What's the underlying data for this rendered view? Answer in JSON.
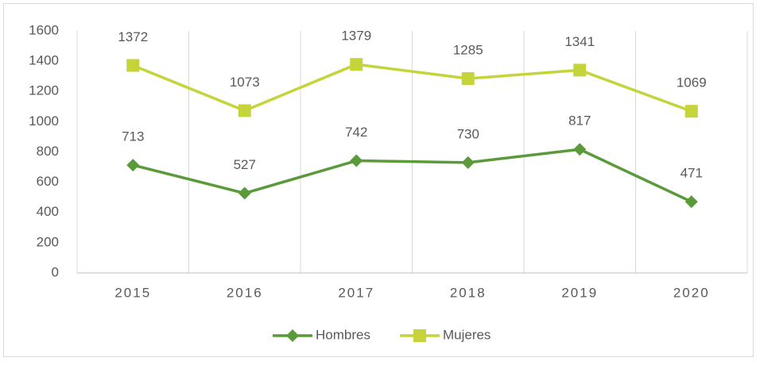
{
  "chart_data": {
    "type": "line",
    "categories": [
      "2015",
      "2016",
      "2017",
      "2018",
      "2019",
      "2020"
    ],
    "series": [
      {
        "name": "Hombres",
        "color": "#5b9a3a",
        "marker": "diamond",
        "values": [
          713,
          527,
          742,
          730,
          817,
          471
        ]
      },
      {
        "name": "Mujeres",
        "color": "#c5d43a",
        "marker": "square",
        "values": [
          1372,
          1073,
          1379,
          1285,
          1341,
          1069
        ]
      }
    ],
    "ylim": [
      0,
      1600
    ],
    "yticks": [
      0,
      200,
      400,
      600,
      800,
      1000,
      1200,
      1400,
      1600
    ],
    "grid": false,
    "legend": "bottom",
    "data_labels": true
  }
}
